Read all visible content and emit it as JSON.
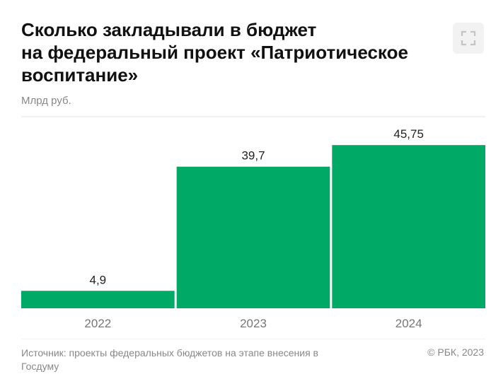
{
  "header": {
    "title_lines": [
      "Сколько закладывали в бюджет",
      "на федеральный проект «Патриотическое",
      "воспитание»"
    ],
    "unit": "Млрд руб."
  },
  "controls": {
    "expand_icon": "fullscreen-icon"
  },
  "chart_data": {
    "type": "bar",
    "title": "Сколько закладывали в бюджет на федеральный проект «Патриотическое воспитание»",
    "ylabel": "Млрд руб.",
    "xlabel": "",
    "categories": [
      "2022",
      "2023",
      "2024"
    ],
    "values": [
      4.9,
      39.7,
      45.75
    ],
    "value_labels": [
      "4,9",
      "39,7",
      "45,75"
    ],
    "ylim": [
      0,
      50
    ],
    "grid": false,
    "bar_color": "#00aa66"
  },
  "footer": {
    "source": "Источник: проекты федеральных бюджетов на этапе внесения в Госдуму",
    "copyright": "© РБК, 2023"
  },
  "colors": {
    "bar": "#00aa66",
    "muted_text": "#888888",
    "rule": "#e6e6e6"
  }
}
